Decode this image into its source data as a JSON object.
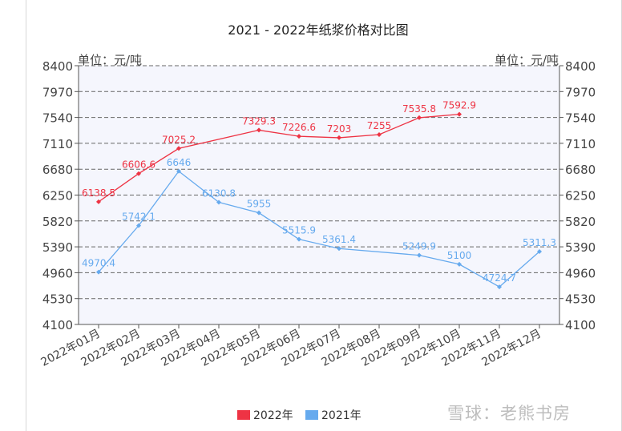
{
  "chart_data": {
    "type": "line",
    "title": "2021 - 2022年纸浆价格对比图",
    "unit_left": "单位：元/吨",
    "unit_right": "单位：元/吨",
    "ylim": [
      4100,
      8400
    ],
    "y_ticks": [
      4100,
      4530,
      4960,
      5390,
      5820,
      6250,
      6680,
      7110,
      7540,
      7970,
      8400
    ],
    "categories": [
      "2022年01月",
      "2022年02月",
      "2022年03月",
      "2022年04月",
      "2022年05月",
      "2022年06月",
      "2022年07月",
      "2022年08月",
      "2022年09月",
      "2022年10月",
      "2022年11月",
      "2022年12月"
    ],
    "grid": true,
    "legend_position": "bottom",
    "series": [
      {
        "name": "2022年",
        "color": "#ee3344",
        "values": [
          6138.5,
          6606.6,
          7025.2,
          null,
          7329.3,
          7226.6,
          7203,
          7255,
          7535.8,
          7592.9,
          null,
          null
        ]
      },
      {
        "name": "2021年",
        "color": "#66aaee",
        "values": [
          4970.4,
          5742.1,
          6646,
          6130.8,
          5955,
          5515.9,
          5361.4,
          null,
          5249.9,
          5100,
          4724.7,
          5311.3
        ]
      }
    ],
    "point_labels": {
      "2022年": [
        "6138.5",
        "6606.6",
        "7025.2",
        null,
        "7329.3",
        "7226.6",
        "7203",
        "7255",
        "7535.8",
        "7592.9",
        null,
        null
      ],
      "2021年": [
        "4970.4",
        "5742.1",
        "6646",
        "6130.8",
        "5955",
        "5515.9",
        "5361.4",
        null,
        "5249.9",
        "5100",
        "4724.7",
        "5311.3"
      ]
    }
  },
  "watermark": "雪球：老熊书房"
}
